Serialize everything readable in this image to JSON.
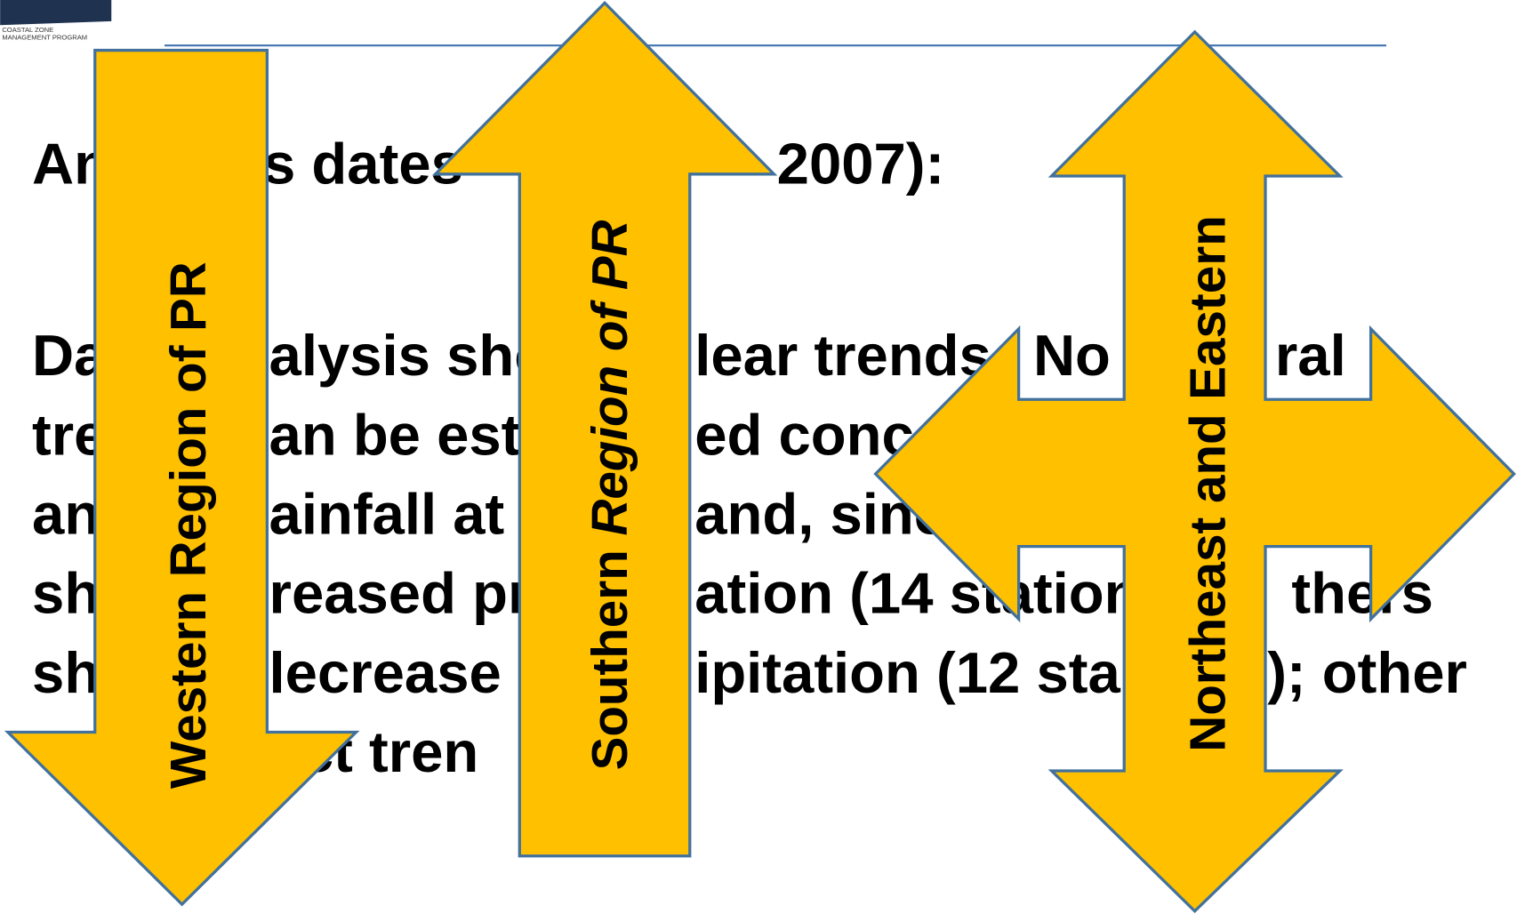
{
  "logo": {
    "text": [
      "COASTAL ZONE",
      "MANAGEMENT PROGRAM"
    ]
  },
  "title": [
    "An",
    "s dates",
    "2007):"
  ],
  "paragraph": [
    [
      "Da",
      "alysis show",
      "lear trends.",
      "No",
      "ral"
    ],
    [
      "tre",
      "an be esta",
      "ed conce"
    ],
    [
      "an",
      "ainfall at t",
      "and, sinc"
    ],
    [
      "sh",
      "reased pr",
      "ation (14 station",
      "thers"
    ],
    [
      "sh",
      "lecrease i",
      "ipitation (12 sta",
      "); other"
    ],
    [
      "ect tren"
    ]
  ],
  "arrows": {
    "western": "Western Region of PR",
    "southern": {
      "plain": "Southern ",
      "italic": "Region of PR"
    },
    "northeast": "Northeast and Eastern"
  }
}
